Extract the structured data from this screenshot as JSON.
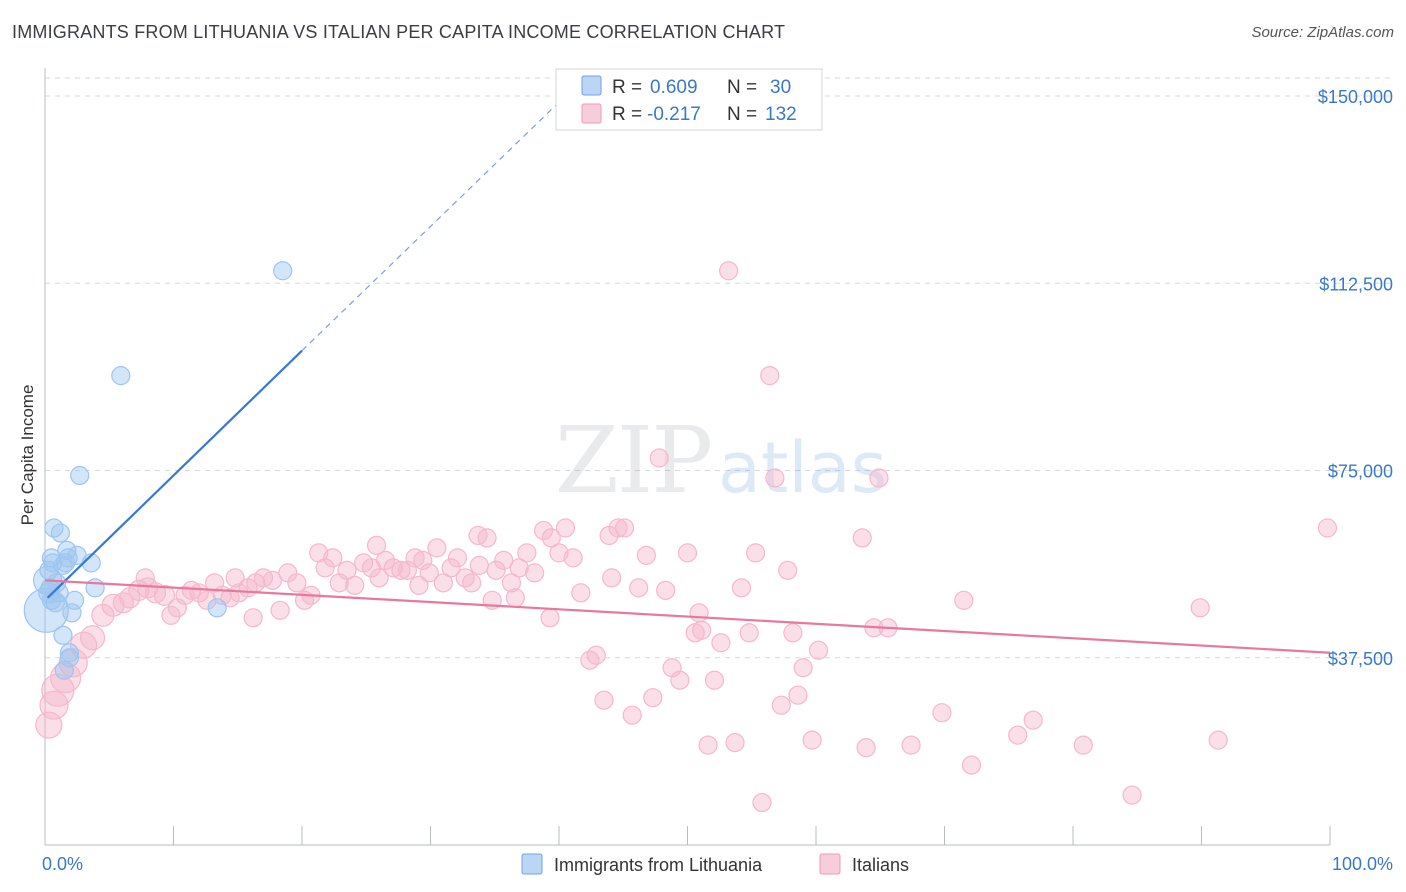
{
  "title": "IMMIGRANTS FROM LITHUANIA VS ITALIAN PER CAPITA INCOME CORRELATION CHART",
  "source": "Source: ZipAtlas.com",
  "watermark": {
    "zip": "ZIP",
    "atlas": "atlas"
  },
  "legend": {
    "r_label": "R =",
    "n_label": "N =",
    "rows": [
      {
        "r": "0.609",
        "n": "30",
        "color": "#9ec5f0"
      },
      {
        "r": "-0.217",
        "n": "132",
        "color": "#f5b8cc"
      }
    ]
  },
  "chart_data": {
    "type": "scatter",
    "title": "IMMIGRANTS FROM LITHUANIA VS ITALIAN PER CAPITA INCOME CORRELATION CHART",
    "xlabel": "",
    "ylabel": "Per Capita Income",
    "xlim": [
      0,
      100
    ],
    "ylim": [
      0,
      157500
    ],
    "x_tick_labels": [
      "0.0%",
      "100.0%"
    ],
    "y_ticks": [
      37500,
      75000,
      112500,
      150000
    ],
    "y_tick_labels": [
      "$37,500",
      "$75,000",
      "$112,500",
      "$150,000"
    ],
    "grid": "horizontal dashed",
    "legend_position": "top-center",
    "series": [
      {
        "name": "Immigrants from Lithuania",
        "color": "#3a78d8",
        "fill": "#9ec5f0",
        "trend": {
          "x0": 0.2,
          "y0": 49500,
          "x1": 20,
          "y1": 99000,
          "dash_to_x": 40.5,
          "dash_to_y": 150000
        },
        "points": [
          [
            0.1,
            47000,
            22
          ],
          [
            0.2,
            53000,
            14
          ],
          [
            0.3,
            50500,
            10
          ],
          [
            0.4,
            51500,
            9
          ],
          [
            0.5,
            49000,
            9
          ],
          [
            0.6,
            56500,
            9
          ],
          [
            0.7,
            63500,
            9
          ],
          [
            0.9,
            52500,
            9
          ],
          [
            1.2,
            62500,
            9
          ],
          [
            1.4,
            56000,
            9
          ],
          [
            1.6,
            56500,
            9
          ],
          [
            1.7,
            59000,
            9
          ],
          [
            1.8,
            57500,
            9
          ],
          [
            2.1,
            46500,
            9
          ],
          [
            2.3,
            49000,
            9
          ],
          [
            3.6,
            56500,
            9
          ],
          [
            3.9,
            51500,
            9
          ],
          [
            1.4,
            42000,
            9
          ],
          [
            1.5,
            35000,
            9
          ],
          [
            1.9,
            37500,
            9
          ],
          [
            2.7,
            74000,
            9
          ],
          [
            5.9,
            94000,
            9
          ],
          [
            18.5,
            115000,
            9
          ],
          [
            13.4,
            47500,
            9
          ],
          [
            0.8,
            48500,
            9
          ],
          [
            1.1,
            50500,
            9
          ],
          [
            1.9,
            38500,
            9
          ],
          [
            0.5,
            57500,
            9
          ],
          [
            0.3,
            55000,
            9
          ],
          [
            2.5,
            58000,
            9
          ]
        ]
      },
      {
        "name": "Italians",
        "color": "#e8789c",
        "fill": "#f5b8cc",
        "trend": {
          "x0": 0,
          "y0": 53000,
          "x1": 100,
          "y1": 38500
        },
        "points": [
          [
            0.3,
            24000,
            13
          ],
          [
            0.7,
            28000,
            14
          ],
          [
            1.0,
            31000,
            16
          ],
          [
            1.6,
            33500,
            15
          ],
          [
            2.2,
            36500,
            14
          ],
          [
            3.0,
            40000,
            13
          ],
          [
            3.7,
            41500,
            12
          ],
          [
            4.5,
            46000,
            11
          ],
          [
            5.3,
            48000,
            11
          ],
          [
            6.1,
            48500,
            10
          ],
          [
            6.6,
            49500,
            10
          ],
          [
            7.3,
            51000,
            10
          ],
          [
            8.0,
            51500,
            10
          ],
          [
            8.6,
            50500,
            10
          ],
          [
            9.3,
            50000,
            10
          ],
          [
            7.8,
            53500,
            9
          ],
          [
            9.8,
            46000,
            9
          ],
          [
            10.3,
            47500,
            9
          ],
          [
            10.9,
            50000,
            9
          ],
          [
            11.4,
            51000,
            9
          ],
          [
            12.0,
            50500,
            9
          ],
          [
            12.6,
            49000,
            9
          ],
          [
            13.2,
            52500,
            9
          ],
          [
            13.8,
            50000,
            9
          ],
          [
            14.4,
            49500,
            9
          ],
          [
            15.1,
            50500,
            9
          ],
          [
            15.8,
            51500,
            9
          ],
          [
            16.4,
            52500,
            9
          ],
          [
            17.0,
            53500,
            9
          ],
          [
            17.7,
            53000,
            9
          ],
          [
            18.3,
            47000,
            9
          ],
          [
            18.9,
            54500,
            9
          ],
          [
            19.6,
            52500,
            9
          ],
          [
            20.2,
            49000,
            9
          ],
          [
            20.7,
            50000,
            9
          ],
          [
            21.3,
            58500,
            9
          ],
          [
            21.8,
            55500,
            9
          ],
          [
            22.4,
            57500,
            9
          ],
          [
            22.9,
            52500,
            9
          ],
          [
            23.5,
            55000,
            9
          ],
          [
            24.1,
            52000,
            9
          ],
          [
            24.8,
            56500,
            9
          ],
          [
            25.4,
            55500,
            9
          ],
          [
            26.0,
            53500,
            9
          ],
          [
            26.5,
            57000,
            9
          ],
          [
            27.1,
            55500,
            9
          ],
          [
            27.7,
            55000,
            9
          ],
          [
            28.2,
            55000,
            9
          ],
          [
            28.8,
            57500,
            9
          ],
          [
            29.4,
            57000,
            9
          ],
          [
            29.9,
            54500,
            9
          ],
          [
            30.5,
            59500,
            9
          ],
          [
            31.0,
            52500,
            9
          ],
          [
            31.6,
            55500,
            9
          ],
          [
            32.1,
            57500,
            9
          ],
          [
            32.7,
            53500,
            9
          ],
          [
            33.2,
            52500,
            9
          ],
          [
            33.8,
            56000,
            9
          ],
          [
            34.4,
            61500,
            9
          ],
          [
            35.1,
            55000,
            9
          ],
          [
            35.7,
            57000,
            9
          ],
          [
            36.3,
            52500,
            9
          ],
          [
            36.9,
            55500,
            9
          ],
          [
            37.5,
            58500,
            9
          ],
          [
            38.1,
            54500,
            9
          ],
          [
            38.8,
            63000,
            9
          ],
          [
            39.4,
            61500,
            9
          ],
          [
            40.0,
            58500,
            9
          ],
          [
            40.5,
            63500,
            9
          ],
          [
            41.1,
            57500,
            9
          ],
          [
            41.7,
            50500,
            9
          ],
          [
            42.4,
            37000,
            9
          ],
          [
            42.9,
            38000,
            9
          ],
          [
            43.5,
            29000,
            9
          ],
          [
            44.1,
            53500,
            9
          ],
          [
            44.6,
            63500,
            9
          ],
          [
            45.1,
            63500,
            9
          ],
          [
            45.7,
            26000,
            9
          ],
          [
            46.2,
            51500,
            9
          ],
          [
            46.8,
            58000,
            9
          ],
          [
            47.3,
            29500,
            9
          ],
          [
            47.8,
            77500,
            9
          ],
          [
            48.3,
            51000,
            9
          ],
          [
            48.8,
            35500,
            9
          ],
          [
            49.4,
            33000,
            9
          ],
          [
            50.0,
            58500,
            9
          ],
          [
            50.6,
            42500,
            9
          ],
          [
            51.1,
            43000,
            9
          ],
          [
            51.6,
            20000,
            9
          ],
          [
            52.1,
            33000,
            9
          ],
          [
            52.6,
            40500,
            9
          ],
          [
            53.2,
            115000,
            9
          ],
          [
            53.7,
            20500,
            9
          ],
          [
            54.2,
            51500,
            9
          ],
          [
            54.8,
            42500,
            9
          ],
          [
            55.3,
            58500,
            9
          ],
          [
            55.8,
            8500,
            9
          ],
          [
            56.4,
            94000,
            9
          ],
          [
            56.8,
            73500,
            9
          ],
          [
            57.3,
            28000,
            9
          ],
          [
            57.8,
            55000,
            9
          ],
          [
            58.2,
            42500,
            9
          ],
          [
            58.6,
            30000,
            9
          ],
          [
            59.0,
            35500,
            9
          ],
          [
            59.7,
            21000,
            9
          ],
          [
            60.2,
            39000,
            9
          ],
          [
            63.6,
            61500,
            9
          ],
          [
            63.9,
            19500,
            9
          ],
          [
            64.5,
            43500,
            9
          ],
          [
            64.9,
            73500,
            9
          ],
          [
            65.6,
            43500,
            9
          ],
          [
            67.4,
            20000,
            9
          ],
          [
            69.8,
            26500,
            9
          ],
          [
            71.5,
            49000,
            9
          ],
          [
            72.1,
            16000,
            9
          ],
          [
            75.7,
            22000,
            9
          ],
          [
            76.9,
            25000,
            9
          ],
          [
            80.8,
            20000,
            9
          ],
          [
            84.6,
            10000,
            9
          ],
          [
            89.9,
            47500,
            9
          ],
          [
            91.3,
            21000,
            9
          ],
          [
            99.8,
            63500,
            9
          ],
          [
            16.2,
            45500,
            9
          ],
          [
            25.8,
            60000,
            9
          ],
          [
            33.7,
            62000,
            9
          ],
          [
            29.1,
            52000,
            9
          ],
          [
            34.8,
            49000,
            9
          ],
          [
            36.6,
            49500,
            9
          ],
          [
            43.9,
            62000,
            9
          ],
          [
            50.9,
            46500,
            9
          ],
          [
            39.3,
            45500,
            9
          ],
          [
            14.8,
            53500,
            9
          ]
        ]
      }
    ]
  }
}
